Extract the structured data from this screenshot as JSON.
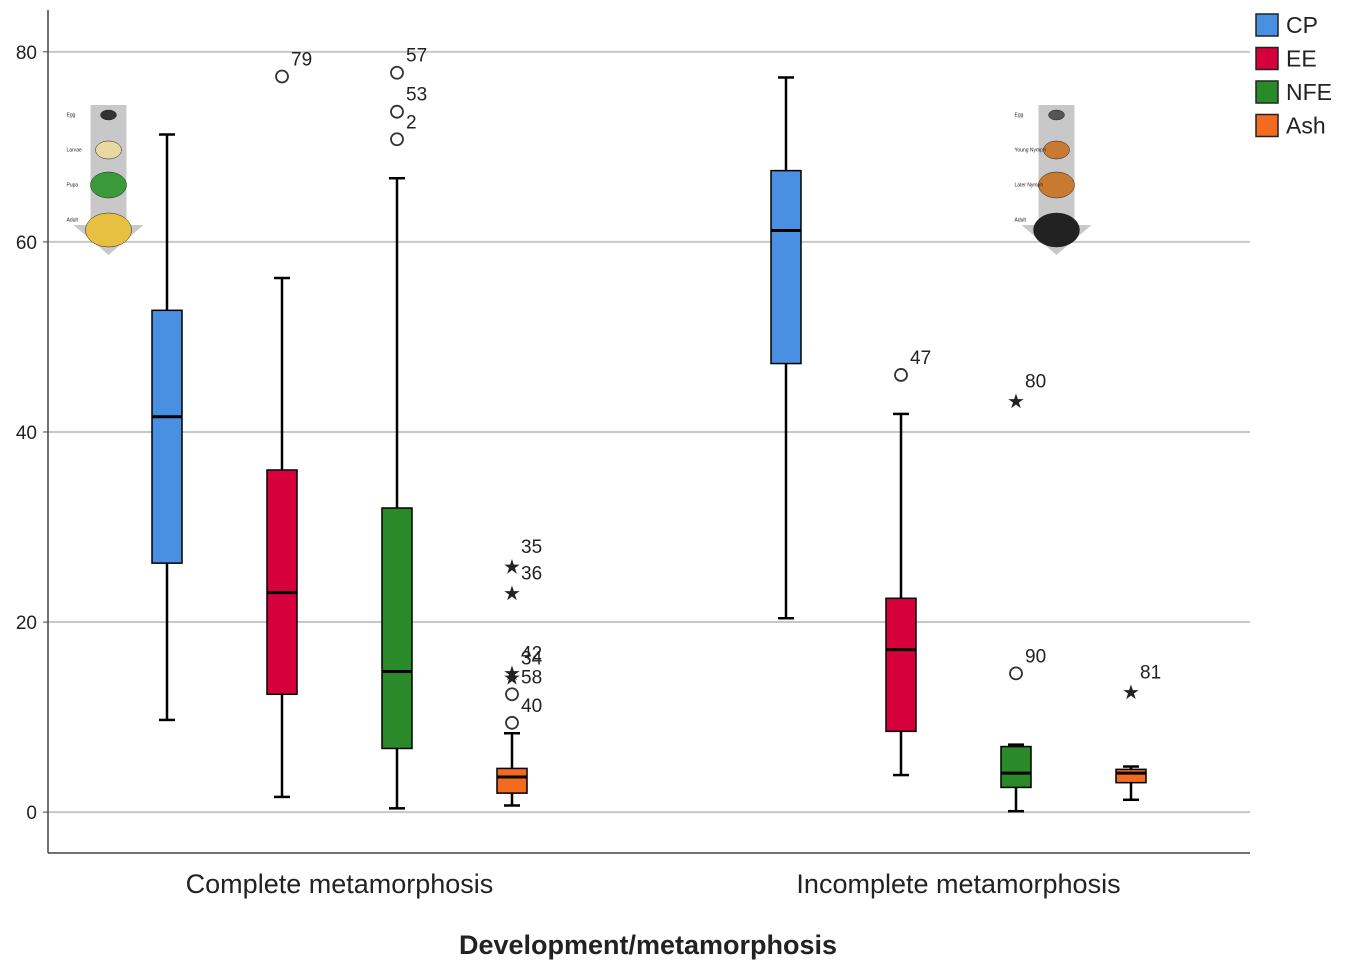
{
  "chart_data": {
    "type": "box",
    "x_label": "Development/metamorphosis",
    "categories": [
      "Complete metamorphosis",
      "Incomplete metamorphosis"
    ],
    "ylim": [
      -4.3,
      84.4
    ],
    "yticks": [
      0,
      20,
      40,
      60,
      80
    ],
    "grid": true,
    "legend": "top-right",
    "series": [
      {
        "name": "CP",
        "color": "#4a90e2",
        "boxes": [
          {
            "min": 9.7,
            "q1": 26.2,
            "median": 41.6,
            "q3": 52.8,
            "max": 71.3,
            "outliers": []
          },
          {
            "min": 20.4,
            "q1": 47.2,
            "median": 61.2,
            "q3": 67.5,
            "max": 77.3,
            "outliers": []
          }
        ]
      },
      {
        "name": "EE",
        "color": "#d6003c",
        "boxes": [
          {
            "min": 1.6,
            "q1": 12.4,
            "median": 23.1,
            "q3": 36.0,
            "max": 56.2,
            "outliers": [
              {
                "value": 77.4,
                "label": "79",
                "marker": "circle"
              }
            ]
          },
          {
            "min": 3.9,
            "q1": 8.5,
            "median": 17.1,
            "q3": 22.5,
            "max": 41.9,
            "outliers": [
              {
                "value": 46.0,
                "label": "47",
                "marker": "circle"
              }
            ]
          }
        ]
      },
      {
        "name": "NFE",
        "color": "#2a8a2a",
        "boxes": [
          {
            "min": 0.4,
            "q1": 6.7,
            "median": 14.8,
            "q3": 32.0,
            "max": 66.7,
            "outliers": [
              {
                "value": 77.8,
                "label": "57",
                "marker": "circle"
              },
              {
                "value": 73.7,
                "label": "53",
                "marker": "circle"
              },
              {
                "value": 70.8,
                "label": "2",
                "marker": "circle"
              }
            ]
          },
          {
            "min": 0.1,
            "q1": 2.6,
            "median": 4.1,
            "q3": 6.9,
            "max": 7.1,
            "outliers": [
              {
                "value": 43.5,
                "label": "80",
                "marker": "star"
              },
              {
                "value": 14.6,
                "label": "90",
                "marker": "circle"
              }
            ]
          }
        ]
      },
      {
        "name": "Ash",
        "color": "#f26b21",
        "boxes": [
          {
            "min": 0.7,
            "q1": 2.0,
            "median": 3.7,
            "q3": 4.6,
            "max": 8.3,
            "outliers": [
              {
                "value": 26.1,
                "label": "35",
                "marker": "star"
              },
              {
                "value": 23.3,
                "label": "36",
                "marker": "star"
              },
              {
                "value": 14.9,
                "label": "42",
                "marker": "star"
              },
              {
                "value": 14.4,
                "label": "34",
                "marker": "star"
              },
              {
                "value": 12.4,
                "label": "58",
                "marker": "circle"
              },
              {
                "value": 9.4,
                "label": "40",
                "marker": "circle"
              }
            ]
          },
          {
            "min": 1.3,
            "q1": 3.1,
            "median": 4.1,
            "q3": 4.5,
            "max": 4.8,
            "outliers": [
              {
                "value": 12.9,
                "label": "81",
                "marker": "star"
              }
            ]
          }
        ]
      }
    ],
    "illustrations": [
      {
        "stages": [
          "Egg",
          "Larvae",
          "Pupa",
          "Adult"
        ]
      },
      {
        "stages": [
          "Egg",
          "Young Nymph",
          "Later Nymph",
          "Adult"
        ]
      }
    ]
  }
}
